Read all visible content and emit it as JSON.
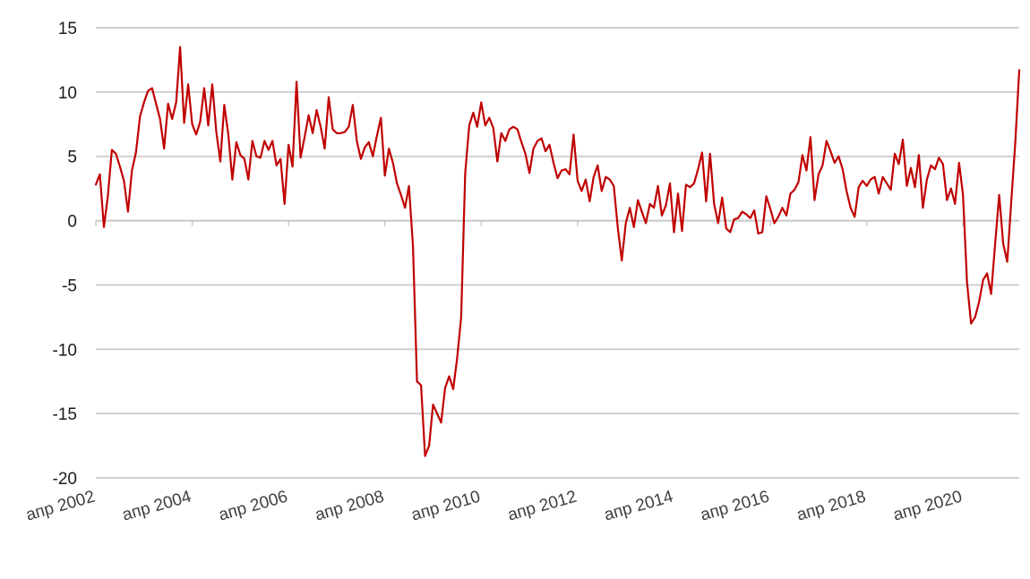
{
  "chart_data": {
    "type": "line",
    "title": "",
    "xlabel": "",
    "ylabel": "",
    "grid": true,
    "legend": "none",
    "ylim": [
      -20,
      15
    ],
    "yticks": [
      15,
      10,
      5,
      0,
      -5,
      -10,
      -15,
      -20
    ],
    "xlim": [
      "2002-04",
      "2021-06"
    ],
    "xtick_labels": [
      {
        "date": "2002-04",
        "label": "апр 2002"
      },
      {
        "date": "2004-04",
        "label": "апр 2004"
      },
      {
        "date": "2006-04",
        "label": "апр 2006"
      },
      {
        "date": "2008-04",
        "label": "апр 2008"
      },
      {
        "date": "2010-04",
        "label": "апр 2010"
      },
      {
        "date": "2012-04",
        "label": "апр 2012"
      },
      {
        "date": "2014-04",
        "label": "апр 2014"
      },
      {
        "date": "2016-04",
        "label": "апр 2016"
      },
      {
        "date": "2018-04",
        "label": "апр 2018"
      },
      {
        "date": "2020-04",
        "label": "апр 2020"
      }
    ],
    "series": [
      {
        "color": "#c00000",
        "points": [
          [
            "2002-04",
            2.8
          ],
          [
            "2002-05",
            3.6
          ],
          [
            "2002-06",
            -0.5
          ],
          [
            "2002-07",
            1.9
          ],
          [
            "2002-08",
            5.5
          ],
          [
            "2002-09",
            5.2
          ],
          [
            "2002-10",
            4.2
          ],
          [
            "2002-11",
            3.1
          ],
          [
            "2002-12",
            0.7
          ],
          [
            "2003-01",
            3.9
          ],
          [
            "2003-02",
            5.3
          ],
          [
            "2003-03",
            8.1
          ],
          [
            "2003-04",
            9.2
          ],
          [
            "2003-05",
            10.1
          ],
          [
            "2003-06",
            10.3
          ],
          [
            "2003-07",
            9.1
          ],
          [
            "2003-08",
            7.9
          ],
          [
            "2003-09",
            5.6
          ],
          [
            "2003-10",
            9.1
          ],
          [
            "2003-11",
            7.9
          ],
          [
            "2003-12",
            9.2
          ],
          [
            "2004-01",
            13.5
          ],
          [
            "2004-02",
            7.6
          ],
          [
            "2004-03",
            10.6
          ],
          [
            "2004-04",
            7.5
          ],
          [
            "2004-05",
            6.7
          ],
          [
            "2004-06",
            7.7
          ],
          [
            "2004-07",
            10.3
          ],
          [
            "2004-08",
            7.4
          ],
          [
            "2004-09",
            10.6
          ],
          [
            "2004-10",
            6.9
          ],
          [
            "2004-11",
            4.6
          ],
          [
            "2004-12",
            9.0
          ],
          [
            "2005-01",
            6.7
          ],
          [
            "2005-02",
            3.2
          ],
          [
            "2005-03",
            6.1
          ],
          [
            "2005-04",
            5.1
          ],
          [
            "2005-05",
            4.8
          ],
          [
            "2005-06",
            3.2
          ],
          [
            "2005-07",
            6.2
          ],
          [
            "2005-08",
            5.0
          ],
          [
            "2005-09",
            4.9
          ],
          [
            "2005-10",
            6.2
          ],
          [
            "2005-11",
            5.5
          ],
          [
            "2005-12",
            6.2
          ],
          [
            "2006-01",
            4.3
          ],
          [
            "2006-02",
            4.8
          ],
          [
            "2006-03",
            1.3
          ],
          [
            "2006-04",
            5.9
          ],
          [
            "2006-05",
            4.2
          ],
          [
            "2006-06",
            10.8
          ],
          [
            "2006-07",
            4.9
          ],
          [
            "2006-08",
            6.5
          ],
          [
            "2006-09",
            8.2
          ],
          [
            "2006-10",
            6.8
          ],
          [
            "2006-11",
            8.6
          ],
          [
            "2006-12",
            7.3
          ],
          [
            "2007-01",
            5.6
          ],
          [
            "2007-02",
            9.6
          ],
          [
            "2007-03",
            7.1
          ],
          [
            "2007-04",
            6.8
          ],
          [
            "2007-05",
            6.8
          ],
          [
            "2007-06",
            6.9
          ],
          [
            "2007-07",
            7.3
          ],
          [
            "2007-08",
            9.0
          ],
          [
            "2007-09",
            6.2
          ],
          [
            "2007-10",
            4.8
          ],
          [
            "2007-11",
            5.7
          ],
          [
            "2007-12",
            6.1
          ],
          [
            "2008-01",
            5.0
          ],
          [
            "2008-02",
            6.6
          ],
          [
            "2008-03",
            8.0
          ],
          [
            "2008-04",
            3.5
          ],
          [
            "2008-05",
            5.6
          ],
          [
            "2008-06",
            4.5
          ],
          [
            "2008-07",
            2.9
          ],
          [
            "2008-08",
            2.0
          ],
          [
            "2008-09",
            1.0
          ],
          [
            "2008-10",
            2.7
          ],
          [
            "2008-11",
            -2.0
          ],
          [
            "2008-12",
            -12.5
          ],
          [
            "2009-01",
            -12.8
          ],
          [
            "2009-02",
            -18.3
          ],
          [
            "2009-03",
            -17.5
          ],
          [
            "2009-04",
            -14.3
          ],
          [
            "2009-05",
            -15.0
          ],
          [
            "2009-06",
            -15.7
          ],
          [
            "2009-07",
            -13.0
          ],
          [
            "2009-08",
            -12.1
          ],
          [
            "2009-09",
            -13.1
          ],
          [
            "2009-10",
            -10.7
          ],
          [
            "2009-11",
            -7.5
          ],
          [
            "2009-12",
            3.7
          ],
          [
            "2010-01",
            7.4
          ],
          [
            "2010-02",
            8.4
          ],
          [
            "2010-03",
            7.3
          ],
          [
            "2010-04",
            9.2
          ],
          [
            "2010-05",
            7.4
          ],
          [
            "2010-06",
            8.0
          ],
          [
            "2010-07",
            7.2
          ],
          [
            "2010-08",
            4.6
          ],
          [
            "2010-09",
            6.8
          ],
          [
            "2010-10",
            6.2
          ],
          [
            "2010-11",
            7.1
          ],
          [
            "2010-12",
            7.3
          ],
          [
            "2011-01",
            7.1
          ],
          [
            "2011-02",
            6.1
          ],
          [
            "2011-03",
            5.2
          ],
          [
            "2011-04",
            3.7
          ],
          [
            "2011-05",
            5.6
          ],
          [
            "2011-06",
            6.2
          ],
          [
            "2011-07",
            6.4
          ],
          [
            "2011-08",
            5.4
          ],
          [
            "2011-09",
            5.9
          ],
          [
            "2011-10",
            4.5
          ],
          [
            "2011-11",
            3.3
          ],
          [
            "2011-12",
            3.9
          ],
          [
            "2012-01",
            4.0
          ],
          [
            "2012-02",
            3.6
          ],
          [
            "2012-03",
            6.7
          ],
          [
            "2012-04",
            3.1
          ],
          [
            "2012-05",
            2.3
          ],
          [
            "2012-06",
            3.2
          ],
          [
            "2012-07",
            1.5
          ],
          [
            "2012-08",
            3.4
          ],
          [
            "2012-09",
            4.3
          ],
          [
            "2012-10",
            2.3
          ],
          [
            "2012-11",
            3.4
          ],
          [
            "2012-12",
            3.2
          ],
          [
            "2013-01",
            2.7
          ],
          [
            "2013-02",
            -0.5
          ],
          [
            "2013-03",
            -3.1
          ],
          [
            "2013-04",
            -0.2
          ],
          [
            "2013-05",
            1.0
          ],
          [
            "2013-06",
            -0.5
          ],
          [
            "2013-07",
            1.6
          ],
          [
            "2013-08",
            0.7
          ],
          [
            "2013-09",
            -0.2
          ],
          [
            "2013-10",
            1.3
          ],
          [
            "2013-11",
            1.0
          ],
          [
            "2013-12",
            2.7
          ],
          [
            "2014-01",
            0.4
          ],
          [
            "2014-02",
            1.2
          ],
          [
            "2014-03",
            2.9
          ],
          [
            "2014-04",
            -0.9
          ],
          [
            "2014-05",
            2.1
          ],
          [
            "2014-06",
            -0.8
          ],
          [
            "2014-07",
            2.8
          ],
          [
            "2014-08",
            2.6
          ],
          [
            "2014-09",
            2.9
          ],
          [
            "2014-10",
            4.0
          ],
          [
            "2014-11",
            5.3
          ],
          [
            "2014-12",
            1.5
          ],
          [
            "2015-01",
            5.2
          ],
          [
            "2015-02",
            1.3
          ],
          [
            "2015-03",
            -0.2
          ],
          [
            "2015-04",
            1.8
          ],
          [
            "2015-05",
            -0.6
          ],
          [
            "2015-06",
            -0.9
          ],
          [
            "2015-07",
            0.1
          ],
          [
            "2015-08",
            0.2
          ],
          [
            "2015-09",
            0.7
          ],
          [
            "2015-10",
            0.5
          ],
          [
            "2015-11",
            0.2
          ],
          [
            "2015-12",
            0.8
          ],
          [
            "2016-01",
            -1.0
          ],
          [
            "2016-02",
            -0.9
          ],
          [
            "2016-03",
            1.9
          ],
          [
            "2016-04",
            0.9
          ],
          [
            "2016-05",
            -0.2
          ],
          [
            "2016-06",
            0.3
          ],
          [
            "2016-07",
            1.0
          ],
          [
            "2016-08",
            0.4
          ],
          [
            "2016-09",
            2.1
          ],
          [
            "2016-10",
            2.4
          ],
          [
            "2016-11",
            3.0
          ],
          [
            "2016-12",
            5.1
          ],
          [
            "2017-01",
            3.9
          ],
          [
            "2017-02",
            6.5
          ],
          [
            "2017-03",
            1.6
          ],
          [
            "2017-04",
            3.6
          ],
          [
            "2017-05",
            4.3
          ],
          [
            "2017-06",
            6.2
          ],
          [
            "2017-07",
            5.4
          ],
          [
            "2017-08",
            4.5
          ],
          [
            "2017-09",
            5.0
          ],
          [
            "2017-10",
            4.0
          ],
          [
            "2017-11",
            2.3
          ],
          [
            "2017-12",
            1.0
          ],
          [
            "2018-01",
            0.3
          ],
          [
            "2018-02",
            2.6
          ],
          [
            "2018-03",
            3.1
          ],
          [
            "2018-04",
            2.7
          ],
          [
            "2018-05",
            3.2
          ],
          [
            "2018-06",
            3.4
          ],
          [
            "2018-07",
            2.1
          ],
          [
            "2018-08",
            3.4
          ],
          [
            "2018-09",
            2.9
          ],
          [
            "2018-10",
            2.4
          ],
          [
            "2018-11",
            5.2
          ],
          [
            "2018-12",
            4.4
          ],
          [
            "2019-01",
            6.3
          ],
          [
            "2019-02",
            2.7
          ],
          [
            "2019-03",
            4.1
          ],
          [
            "2019-04",
            2.6
          ],
          [
            "2019-05",
            5.1
          ],
          [
            "2019-06",
            1.0
          ],
          [
            "2019-07",
            3.2
          ],
          [
            "2019-08",
            4.3
          ],
          [
            "2019-09",
            4.0
          ],
          [
            "2019-10",
            4.9
          ],
          [
            "2019-11",
            4.4
          ],
          [
            "2019-12",
            1.6
          ],
          [
            "2020-01",
            2.5
          ],
          [
            "2020-02",
            1.3
          ],
          [
            "2020-03",
            4.5
          ],
          [
            "2020-04",
            2.0
          ],
          [
            "2020-05",
            -4.8
          ],
          [
            "2020-06",
            -8.0
          ],
          [
            "2020-07",
            -7.5
          ],
          [
            "2020-08",
            -6.3
          ],
          [
            "2020-09",
            -4.6
          ],
          [
            "2020-10",
            -4.1
          ],
          [
            "2020-11",
            -5.7
          ],
          [
            "2020-12",
            -1.8
          ],
          [
            "2021-01",
            2.0
          ],
          [
            "2021-02",
            -1.8
          ],
          [
            "2021-03",
            -3.2
          ],
          [
            "2021-04",
            1.4
          ],
          [
            "2021-05",
            6.0
          ],
          [
            "2021-06",
            11.7
          ]
        ]
      }
    ]
  }
}
